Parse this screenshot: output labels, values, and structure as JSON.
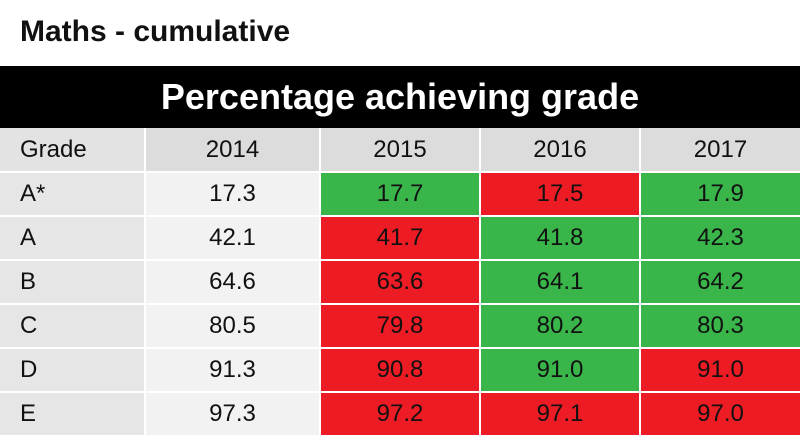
{
  "title": "Maths - cumulative",
  "header": "Percentage achieving grade",
  "colors": {
    "increase": "#39b54a",
    "decrease": "#ed1c24",
    "header_bar": "#000000",
    "row_label_bg": "#e6e6e6",
    "baseline_bg": "#f2f2f2"
  },
  "chart_data": {
    "type": "table",
    "title": "Maths - cumulative",
    "subtitle": "Percentage achieving grade",
    "columns": [
      "Grade",
      "2014",
      "2015",
      "2016",
      "2017"
    ],
    "rows": [
      {
        "grade": "A*",
        "values": [
          "17.3",
          "17.7",
          "17.5",
          "17.9"
        ],
        "status": [
          "base",
          "up",
          "down",
          "up"
        ]
      },
      {
        "grade": "A",
        "values": [
          "42.1",
          "41.7",
          "41.8",
          "42.3"
        ],
        "status": [
          "base",
          "down",
          "up",
          "up"
        ]
      },
      {
        "grade": "B",
        "values": [
          "64.6",
          "63.6",
          "64.1",
          "64.2"
        ],
        "status": [
          "base",
          "down",
          "up",
          "up"
        ]
      },
      {
        "grade": "C",
        "values": [
          "80.5",
          "79.8",
          "80.2",
          "80.3"
        ],
        "status": [
          "base",
          "down",
          "up",
          "up"
        ]
      },
      {
        "grade": "D",
        "values": [
          "91.3",
          "90.8",
          "91.0",
          "91.0"
        ],
        "status": [
          "base",
          "down",
          "up",
          "down"
        ]
      },
      {
        "grade": "E",
        "values": [
          "97.3",
          "97.2",
          "97.1",
          "97.0"
        ],
        "status": [
          "base",
          "down",
          "down",
          "down"
        ]
      }
    ]
  }
}
